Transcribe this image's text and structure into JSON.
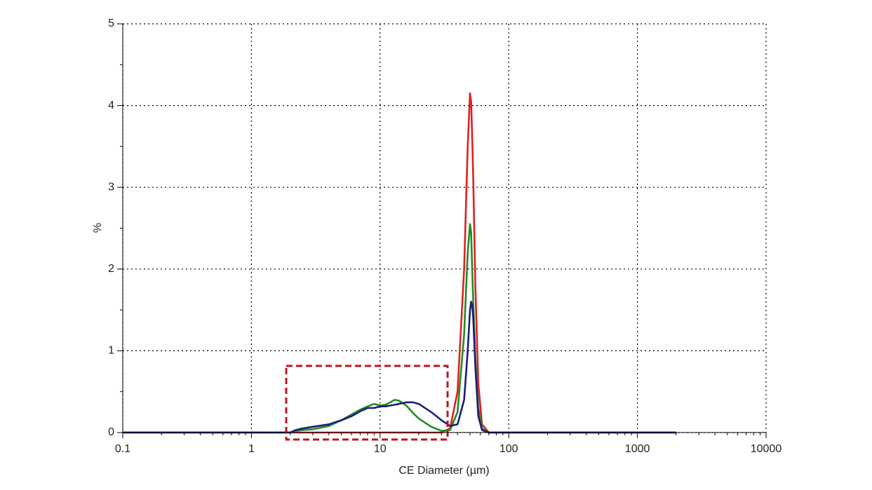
{
  "chart_data": {
    "type": "line",
    "xlabel": "CE Diameter (µm)",
    "ylabel": "%",
    "xscale": "log",
    "xlim": [
      0.1,
      10000
    ],
    "xticks": [
      0.1,
      1,
      10,
      100,
      1000,
      10000
    ],
    "ylim": [
      0,
      5
    ],
    "yticks": [
      0,
      1,
      2,
      3,
      4,
      5
    ],
    "grid": true,
    "x": [
      0.1,
      1,
      2,
      2.2,
      2.5,
      3,
      4,
      5,
      6,
      7,
      8,
      9,
      10,
      11,
      12,
      13,
      14,
      16,
      18,
      20,
      25,
      30,
      35,
      40,
      45,
      48,
      50,
      51,
      52,
      53,
      55,
      58,
      62,
      70,
      100,
      2000
    ],
    "series": [
      {
        "color": "#e02020",
        "values": [
          0,
          0,
          0,
          0,
          0,
          0,
          0,
          0,
          0,
          0,
          0,
          0,
          0,
          0,
          0,
          0,
          0,
          0,
          0,
          0,
          0,
          0,
          0.05,
          0.5,
          2.0,
          3.5,
          4.15,
          4.05,
          3.6,
          3.1,
          1.8,
          0.6,
          0.1,
          0,
          0,
          0
        ]
      },
      {
        "color": "#228b22",
        "values": [
          0,
          0,
          0,
          0.02,
          0.03,
          0.04,
          0.08,
          0.15,
          0.22,
          0.28,
          0.32,
          0.35,
          0.33,
          0.34,
          0.37,
          0.4,
          0.39,
          0.33,
          0.24,
          0.17,
          0.07,
          0.02,
          0.03,
          0.25,
          1.2,
          2.2,
          2.55,
          2.45,
          2.0,
          1.6,
          0.9,
          0.3,
          0.05,
          0,
          0,
          0
        ]
      },
      {
        "color": "#1a1f7a",
        "values": [
          0,
          0,
          0,
          0.03,
          0.05,
          0.07,
          0.1,
          0.15,
          0.2,
          0.26,
          0.3,
          0.3,
          0.32,
          0.32,
          0.33,
          0.34,
          0.35,
          0.37,
          0.37,
          0.35,
          0.25,
          0.15,
          0.08,
          0.1,
          0.4,
          1.0,
          1.5,
          1.6,
          1.55,
          1.4,
          0.8,
          0.2,
          0.03,
          0,
          0,
          0
        ]
      }
    ]
  }
}
